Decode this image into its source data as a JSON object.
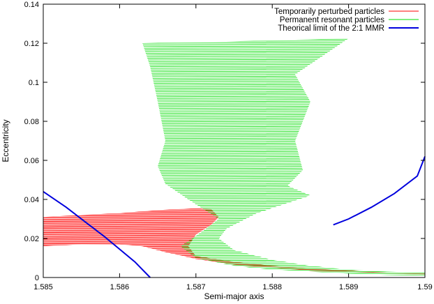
{
  "chart_data": {
    "type": "line",
    "title": "",
    "xlabel": "Semi-major axis",
    "ylabel": "Eccentricity",
    "xlim": [
      1.585,
      1.59
    ],
    "ylim": [
      0,
      0.14
    ],
    "x_ticks": [
      "1.585",
      "1.586",
      "1.587",
      "1.588",
      "1.589",
      "1.59"
    ],
    "y_ticks": [
      "0",
      "0.02",
      "0.04",
      "0.06",
      "0.08",
      "0.1",
      "0.12",
      "0.14"
    ],
    "legend_position": "top-right",
    "grid": false,
    "series": [
      {
        "name": "Temporarily perturbed particles",
        "color": "#ff0000",
        "kind": "region",
        "points": [
          [
            1.585,
            0.031
          ],
          [
            1.5855,
            0.032
          ],
          [
            1.586,
            0.033
          ],
          [
            1.5865,
            0.0345
          ],
          [
            1.587,
            0.0355
          ],
          [
            1.5872,
            0.035
          ],
          [
            1.5873,
            0.031
          ],
          [
            1.5872,
            0.027
          ],
          [
            1.587,
            0.022
          ],
          [
            1.5869,
            0.016
          ],
          [
            1.587,
            0.011
          ],
          [
            1.5875,
            0.008
          ],
          [
            1.588,
            0.006
          ],
          [
            1.5885,
            0.0045
          ],
          [
            1.589,
            0.0035
          ],
          [
            1.5895,
            0.0025
          ],
          [
            1.59,
            0.002
          ],
          [
            1.59,
            0.0015
          ],
          [
            1.5895,
            0.002
          ],
          [
            1.589,
            0.003
          ],
          [
            1.5885,
            0.0035
          ],
          [
            1.588,
            0.005
          ],
          [
            1.5875,
            0.0065
          ],
          [
            1.587,
            0.0095
          ],
          [
            1.5866,
            0.013
          ],
          [
            1.5863,
            0.016
          ],
          [
            1.586,
            0.017
          ],
          [
            1.5855,
            0.017
          ],
          [
            1.585,
            0.016
          ]
        ]
      },
      {
        "name": "Permanent resonant particles",
        "color": "#00dd00",
        "kind": "region",
        "points": [
          [
            1.5863,
            0.12
          ],
          [
            1.5875,
            0.121
          ],
          [
            1.589,
            0.1225
          ],
          [
            1.5883,
            0.104
          ],
          [
            1.5885,
            0.09
          ],
          [
            1.5883,
            0.07
          ],
          [
            1.5884,
            0.055
          ],
          [
            1.5882,
            0.047
          ],
          [
            1.5885,
            0.042
          ],
          [
            1.5878,
            0.033
          ],
          [
            1.5874,
            0.025
          ],
          [
            1.5873,
            0.02
          ],
          [
            1.5875,
            0.014
          ],
          [
            1.588,
            0.009
          ],
          [
            1.5885,
            0.006
          ],
          [
            1.589,
            0.004
          ],
          [
            1.5895,
            0.003
          ],
          [
            1.59,
            0.0025
          ],
          [
            1.59,
            0.001
          ],
          [
            1.5895,
            0.0013
          ],
          [
            1.589,
            0.002
          ],
          [
            1.5885,
            0.003
          ],
          [
            1.588,
            0.004
          ],
          [
            1.5875,
            0.006
          ],
          [
            1.587,
            0.01
          ],
          [
            1.5868,
            0.016
          ],
          [
            1.5871,
            0.024
          ],
          [
            1.5873,
            0.03
          ],
          [
            1.5869,
            0.04
          ],
          [
            1.5866,
            0.048
          ],
          [
            1.5865,
            0.057
          ],
          [
            1.5866,
            0.07
          ],
          [
            1.5865,
            0.09
          ],
          [
            1.5864,
            0.108
          ]
        ]
      },
      {
        "name": "Theorical limit of the 2:1 MMR",
        "color": "#0000dd",
        "kind": "line",
        "segments": [
          [
            [
              1.585,
              0.044
            ],
            [
              1.5853,
              0.036
            ],
            [
              1.5856,
              0.027
            ],
            [
              1.5858,
              0.021
            ],
            [
              1.586,
              0.0145
            ],
            [
              1.5862,
              0.008
            ],
            [
              1.5864,
              0.0
            ]
          ],
          [
            [
              1.5888,
              0.027
            ],
            [
              1.589,
              0.03
            ],
            [
              1.5893,
              0.036
            ],
            [
              1.5896,
              0.043
            ],
            [
              1.5899,
              0.052
            ],
            [
              1.59,
              0.062
            ]
          ]
        ]
      }
    ]
  }
}
